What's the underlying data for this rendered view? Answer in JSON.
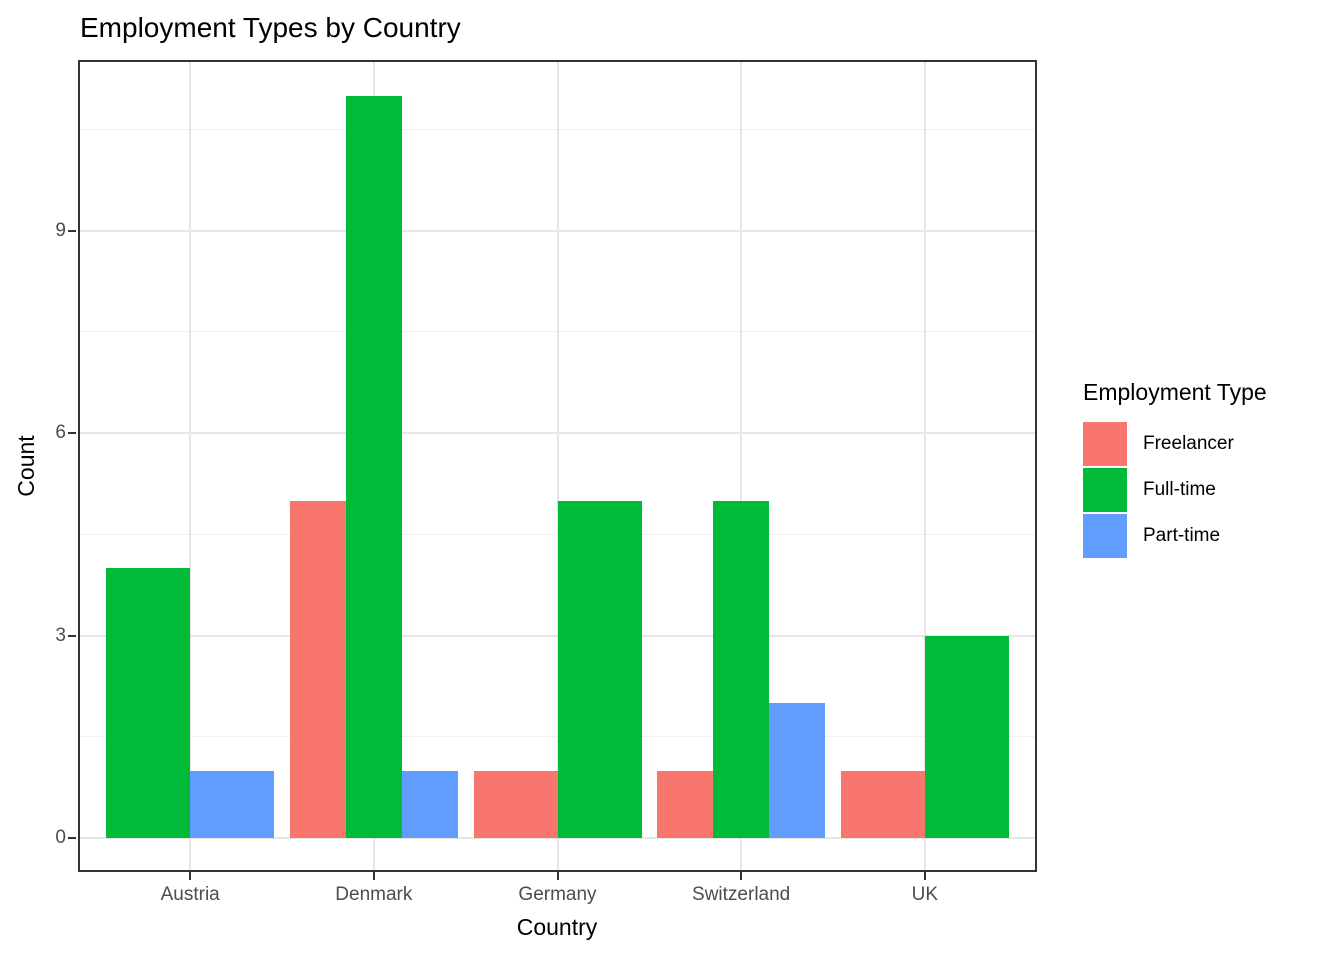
{
  "title": "Employment Types by Country",
  "chart_data": {
    "type": "bar",
    "subtype": "grouped-dodge",
    "title": "Employment Types by Country",
    "categories": [
      "Austria",
      "Denmark",
      "Germany",
      "Switzerland",
      "UK"
    ],
    "series": [
      {
        "name": "Freelancer",
        "color": "#F8766D",
        "values": [
          0,
          5,
          1,
          1,
          1
        ]
      },
      {
        "name": "Full-time",
        "color": "#00BA38",
        "values": [
          4,
          11,
          5,
          5,
          3
        ]
      },
      {
        "name": "Part-time",
        "color": "#619CFF",
        "values": [
          1,
          1,
          0,
          2,
          0
        ]
      }
    ],
    "xlabel": "Country",
    "ylabel": "Count",
    "yticks": [
      0,
      3,
      6,
      9
    ],
    "ylim": [
      -0.5,
      11.55
    ],
    "grid": true,
    "legend_title": "Employment Type",
    "legend_position": "right"
  },
  "colors": {
    "panel_border": "#333333",
    "grid_major": "#E6E6E6",
    "grid_minor": "#F0F0F0",
    "tick_label": "#4D4D4D",
    "text": "#000000",
    "background": "#FFFFFF"
  }
}
